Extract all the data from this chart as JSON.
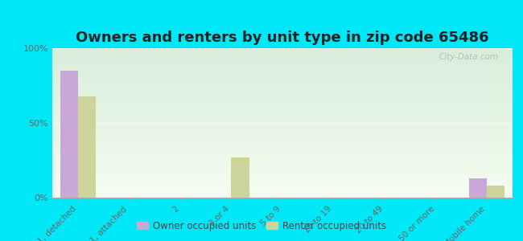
{
  "title": "Owners and renters by unit type in zip code 65486",
  "categories": [
    "1, detached",
    "1, attached",
    "2",
    "3 or 4",
    "5 to 9",
    "10 to 19",
    "20 to 49",
    "50 or more",
    "Mobile home"
  ],
  "owner_values": [
    85,
    0,
    0,
    0,
    0,
    0,
    0,
    0,
    13
  ],
  "renter_values": [
    68,
    0,
    0,
    27,
    0,
    0,
    0,
    0,
    8
  ],
  "owner_color": "#c9a8d8",
  "renter_color": "#cdd49a",
  "bg_plot_top": "#d8eeda",
  "bg_plot_bottom": "#f5fdf0",
  "bg_outer": "#00e8f8",
  "ylim": [
    0,
    100
  ],
  "yticks": [
    0,
    50,
    100
  ],
  "ytick_labels": [
    "0%",
    "50%",
    "100%"
  ],
  "bar_width": 0.35,
  "title_fontsize": 13,
  "legend_owner": "Owner occupied units",
  "legend_renter": "Renter occupied units",
  "watermark": "City-Data.com"
}
